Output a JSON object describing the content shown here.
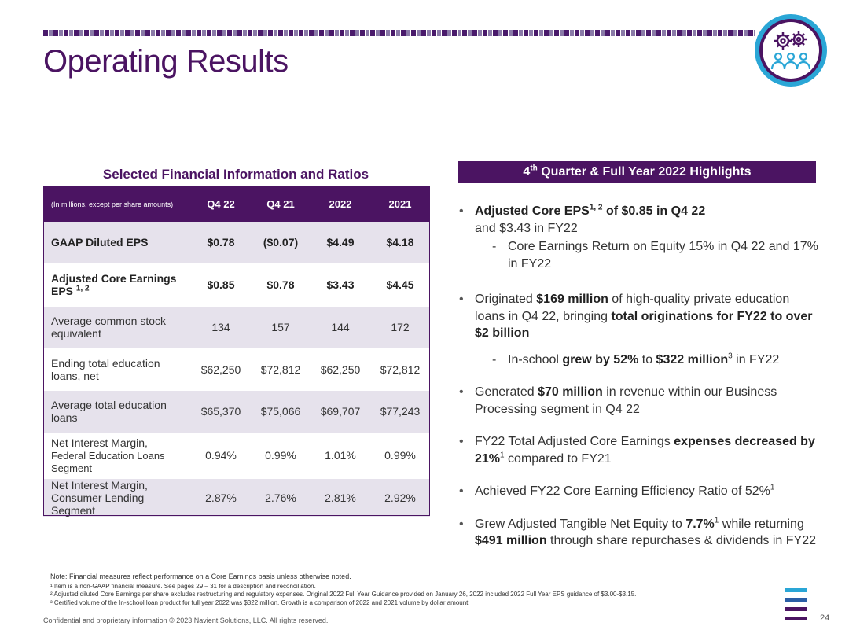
{
  "title": "Operating Results",
  "colors": {
    "brand_purple": "#4b1462",
    "accent_blue": "#2aa6d6",
    "row_shade": "#e6e2ec"
  },
  "logo": {
    "icon": "gears-people-icon"
  },
  "table": {
    "caption": "Selected Financial Information and Ratios",
    "units_label": "(In millions, except per share amounts)",
    "columns": [
      "Q4 22",
      "Q4 21",
      "2022",
      "2021"
    ],
    "rows": [
      {
        "label": "GAAP Diluted EPS",
        "sup": "",
        "values": [
          "$0.78",
          "($0.07)",
          "$4.49",
          "$4.18"
        ]
      },
      {
        "label": "Adjusted Core Earnings EPS",
        "sup": "1, 2",
        "values": [
          "$0.85",
          "$0.78",
          "$3.43",
          "$4.45"
        ]
      },
      {
        "label": "Average common stock equivalent",
        "sup": "",
        "values": [
          "134",
          "157",
          "144",
          "172"
        ]
      },
      {
        "label": "Ending total education loans, net",
        "sup": "",
        "values": [
          "$62,250",
          "$72,812",
          "$62,250",
          "$72,812"
        ]
      },
      {
        "label": "Average total education loans",
        "sup": "",
        "values": [
          "$65,370",
          "$75,066",
          "$69,707",
          "$77,243"
        ]
      },
      {
        "label": "Net Interest Margin,",
        "label_small": "Federal Education Loans Segment",
        "sup": "",
        "values": [
          "0.94%",
          "0.99%",
          "1.01%",
          "0.99%"
        ]
      },
      {
        "label": "Net Interest Margin,",
        "label_small": "Consumer Lending Segment",
        "sup": "",
        "values": [
          "2.87%",
          "2.76%",
          "2.81%",
          "2.92%"
        ]
      }
    ]
  },
  "highlights": {
    "header_pre": "4",
    "header_sup": "th",
    "header_post": " Quarter & Full Year 2022 Highlights",
    "b1": {
      "t1": "Adjusted Core EPS",
      "s1": "1, 2",
      "t2": " of $0.85 in Q4 22",
      "t3": "and $3.43 in FY22",
      "sub": "Core Earnings Return on Equity 15% in Q4 22 and 17% in FY22"
    },
    "b2": {
      "t1": "Originated ",
      "t2": "$169 million",
      "t3": " of high-quality private education loans in Q4 22, bringing ",
      "t4": "total originations for FY22 to over $2 billion",
      "sub_t1": "In-school ",
      "sub_t2": "grew by 52%",
      "sub_t3": " to ",
      "sub_t4": "$322 million",
      "sub_s": "3",
      "sub_t5": " in FY22"
    },
    "b3": {
      "t1": "Generated ",
      "t2": "$70 million",
      "t3": " in revenue within our Business Processing segment in Q4 22"
    },
    "b4": {
      "t1": "FY22 Total Adjusted Core Earnings ",
      "t2": "expenses decreased by 21%",
      "s1": "1",
      "t3": " compared to FY21"
    },
    "b5": {
      "t1": "Achieved FY22 Core Earning Efficiency Ratio of 52%",
      "s1": "1"
    },
    "b6": {
      "t1": "Grew Adjusted Tangible Net Equity to ",
      "t2": "7.7%",
      "s1": "1",
      "t3": " while returning ",
      "t4": "$491 million",
      "t5": " through share repurchases & dividends in FY22"
    }
  },
  "notes": {
    "main": "Note: Financial measures reflect performance on a Core Earnings basis unless otherwise noted.",
    "n1": "¹ Item is a non-GAAP financial measure.  See pages 29 – 31 for a description and reconciliation.",
    "n2": "² Adjusted diluted Core Earnings per share excludes restructuring and regulatory expenses. Original 2022 Full Year Guidance provided on January 26, 2022 included 2022 Full Year EPS guidance of $3.00-$3.15.",
    "n3": "³ Certified volume of the In-school loan product for full year 2022 was $322 million. Growth is a comparison of 2022 and 2021 volume by dollar amount."
  },
  "footer": {
    "confidential": "Confidential and proprietary information  © 2023 Navient Solutions, LLC. All rights reserved.",
    "page": "24"
  },
  "stripes": [
    "#2aa6d6",
    "#2a5ea6",
    "#4b1462",
    "#4b1462"
  ]
}
